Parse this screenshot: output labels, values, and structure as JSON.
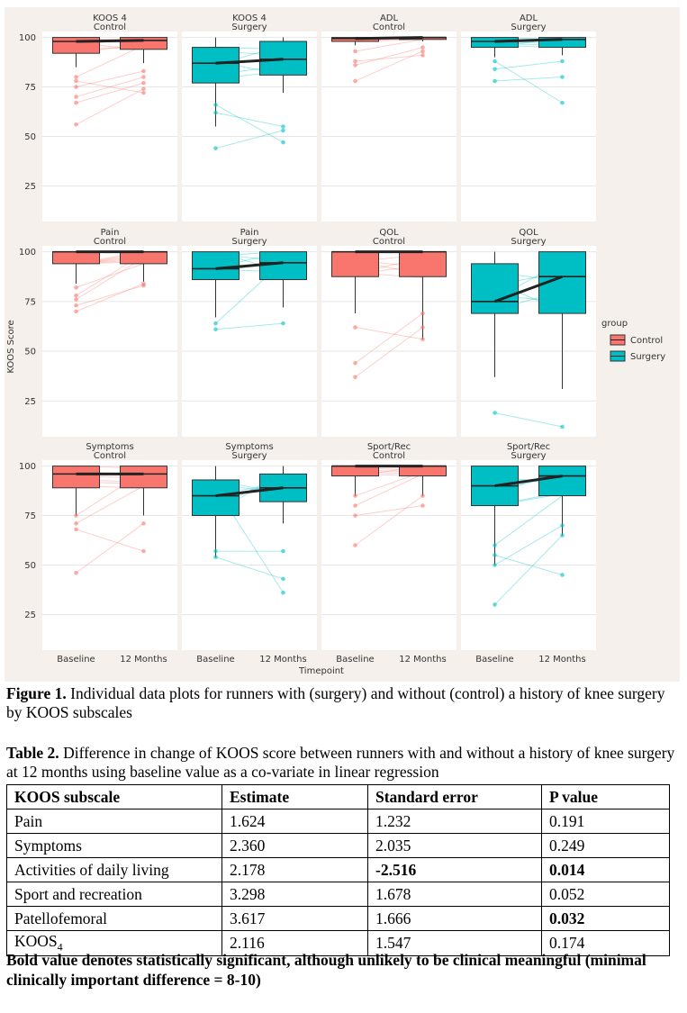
{
  "chart_data": {
    "type": "boxplot-faceted",
    "ylabel": "KOOS Score",
    "xlabel": "Timepoint",
    "x_categories": [
      "Baseline",
      "12 Months"
    ],
    "y_ticks": [
      25,
      50,
      75,
      100
    ],
    "ylim": [
      7,
      103
    ],
    "legend": {
      "title": "group",
      "entries": [
        "Control",
        "Surgery"
      ],
      "placement": "right"
    },
    "colors": {
      "Control": "#f8766d",
      "Surgery": "#00bfc4",
      "panel_bg": "#ffffff",
      "plot_bg": "#f5f0eb"
    },
    "panels": [
      {
        "title": "KOOS 4",
        "subtitle": "Control",
        "group": "Control",
        "boxes": [
          {
            "q1": 92,
            "median": 98,
            "q3": 100,
            "lo": 85,
            "hi": 100
          },
          {
            "q1": 94,
            "median": 98.5,
            "q3": 100,
            "lo": 87,
            "hi": 100
          }
        ],
        "outliers": [
          [
            56,
            67,
            70,
            75,
            78,
            80
          ],
          [
            72,
            74,
            77,
            80,
            83
          ]
        ]
      },
      {
        "title": "KOOS 4",
        "subtitle": "Surgery",
        "group": "Surgery",
        "boxes": [
          {
            "q1": 77,
            "median": 87,
            "q3": 95,
            "lo": 55,
            "hi": 100
          },
          {
            "q1": 81,
            "median": 89,
            "q3": 98,
            "lo": 72,
            "hi": 100
          }
        ],
        "outliers": [
          [
            44,
            62,
            66
          ],
          [
            47,
            53,
            55
          ]
        ]
      },
      {
        "title": "ADL",
        "subtitle": "Control",
        "group": "Control",
        "boxes": [
          {
            "q1": 98,
            "median": 99.5,
            "q3": 100,
            "lo": 96,
            "hi": 100
          },
          {
            "q1": 99,
            "median": 100,
            "q3": 100,
            "lo": 98,
            "hi": 100
          }
        ],
        "outliers": [
          [
            78,
            86,
            88,
            93
          ],
          [
            91,
            93,
            95
          ]
        ]
      },
      {
        "title": "ADL",
        "subtitle": "Surgery",
        "group": "Surgery",
        "boxes": [
          {
            "q1": 95,
            "median": 98,
            "q3": 100,
            "lo": 90,
            "hi": 100
          },
          {
            "q1": 95,
            "median": 99,
            "q3": 100,
            "lo": 91,
            "hi": 100
          }
        ],
        "outliers": [
          [
            78,
            84,
            88
          ],
          [
            67,
            80,
            88
          ]
        ]
      },
      {
        "title": "Pain",
        "subtitle": "Control",
        "group": "Control",
        "boxes": [
          {
            "q1": 94,
            "median": 100,
            "q3": 100,
            "lo": 84,
            "hi": 100
          },
          {
            "q1": 94,
            "median": 100,
            "q3": 100,
            "lo": 85,
            "hi": 100
          }
        ],
        "outliers": [
          [
            70,
            73,
            76,
            78,
            82
          ],
          [
            83,
            84
          ]
        ]
      },
      {
        "title": "Pain",
        "subtitle": "Surgery",
        "group": "Surgery",
        "boxes": [
          {
            "q1": 86,
            "median": 91.5,
            "q3": 100,
            "lo": 67,
            "hi": 100
          },
          {
            "q1": 86,
            "median": 94.5,
            "q3": 100,
            "lo": 72,
            "hi": 100
          }
        ],
        "outliers": [
          [
            61,
            64
          ],
          [
            64
          ]
        ]
      },
      {
        "title": "QOL",
        "subtitle": "Control",
        "group": "Control",
        "boxes": [
          {
            "q1": 87.5,
            "median": 100,
            "q3": 100,
            "lo": 69,
            "hi": 100
          },
          {
            "q1": 87.5,
            "median": 100,
            "q3": 100,
            "lo": 56,
            "hi": 100
          }
        ],
        "outliers": [
          [
            37,
            44,
            62
          ],
          [
            56,
            62,
            69
          ]
        ]
      },
      {
        "title": "QOL",
        "subtitle": "Surgery",
        "group": "Surgery",
        "boxes": [
          {
            "q1": 69,
            "median": 75,
            "q3": 94,
            "lo": 37,
            "hi": 100
          },
          {
            "q1": 69,
            "median": 87.5,
            "q3": 100,
            "lo": 31,
            "hi": 100
          }
        ],
        "outliers": [
          [
            19
          ],
          [
            12
          ]
        ]
      },
      {
        "title": "Symptoms",
        "subtitle": "Control",
        "group": "Control",
        "boxes": [
          {
            "q1": 89,
            "median": 96,
            "q3": 100,
            "lo": 75,
            "hi": 100
          },
          {
            "q1": 89,
            "median": 96,
            "q3": 100,
            "lo": 75,
            "hi": 100
          }
        ],
        "outliers": [
          [
            46,
            68,
            71,
            75
          ],
          [
            57,
            71
          ]
        ]
      },
      {
        "title": "Symptoms",
        "subtitle": "Surgery",
        "group": "Surgery",
        "boxes": [
          {
            "q1": 75,
            "median": 85,
            "q3": 93,
            "lo": 54,
            "hi": 100
          },
          {
            "q1": 82,
            "median": 89,
            "q3": 96,
            "lo": 71,
            "hi": 100
          }
        ],
        "outliers": [
          [
            54,
            57
          ],
          [
            36,
            43,
            57
          ]
        ]
      },
      {
        "title": "Sport/Rec",
        "subtitle": "Control",
        "group": "Control",
        "boxes": [
          {
            "q1": 95,
            "median": 100,
            "q3": 100,
            "lo": 85,
            "hi": 100
          },
          {
            "q1": 95,
            "median": 100,
            "q3": 100,
            "lo": 85,
            "hi": 100
          }
        ],
        "outliers": [
          [
            60,
            75,
            80,
            85
          ],
          [
            80,
            85
          ]
        ]
      },
      {
        "title": "Sport/Rec",
        "subtitle": "Surgery",
        "group": "Surgery",
        "boxes": [
          {
            "q1": 80,
            "median": 90,
            "q3": 100,
            "lo": 50,
            "hi": 100
          },
          {
            "q1": 85,
            "median": 95,
            "q3": 100,
            "lo": 65,
            "hi": 100
          }
        ],
        "outliers": [
          [
            30,
            50,
            55,
            60
          ],
          [
            45,
            65,
            70
          ]
        ]
      }
    ]
  },
  "figure_caption": {
    "label": "Figure 1.",
    "text": " Individual data plots for runners with (surgery) and without (control) a history of knee surgery by KOOS subscales"
  },
  "table_caption": {
    "label": "Table 2.",
    "text": " Difference in change of KOOS score between runners with and without a history of knee surgery at 12 months using baseline value as a co-variate in linear regression"
  },
  "table": {
    "headers": [
      "KOOS subscale",
      "Estimate",
      "Standard error",
      "P value"
    ],
    "rows": [
      [
        "Pain",
        "1.624",
        "1.232",
        "0.191"
      ],
      [
        "Symptoms",
        "2.360",
        "2.035",
        "0.249"
      ],
      [
        "Activities of daily living",
        "2.178",
        "-2.516",
        "0.014"
      ],
      [
        "Sport and recreation",
        "3.298",
        "1.678",
        "0.052"
      ],
      [
        "Patellofemoral",
        "3.617",
        "1.666",
        "0.032"
      ],
      [
        "KOOS4",
        "2.116",
        "1.547",
        "0.174"
      ]
    ],
    "bold_cells": [
      [
        2,
        2
      ],
      [
        2,
        3
      ],
      [
        4,
        3
      ]
    ]
  },
  "footnote": "Bold value denotes statistically significant, although unlikely to be clinical meaningful (minimal clinically important difference = 8-10)"
}
